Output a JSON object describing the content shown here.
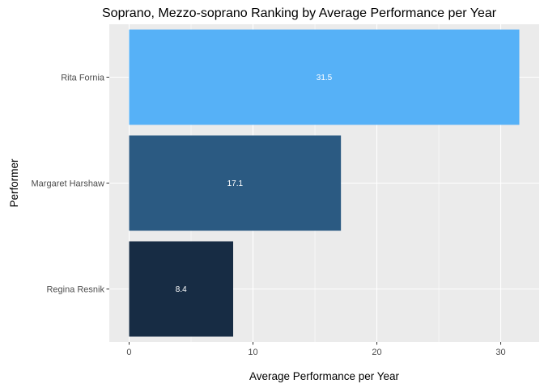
{
  "chart_data": {
    "type": "bar",
    "orientation": "horizontal",
    "title": "Soprano, Mezzo-soprano Ranking by Average Performance per Year",
    "xlabel": "Average Performance per Year",
    "ylabel": "Performer",
    "categories": [
      "Rita Fornia",
      "Margaret Harshaw",
      "Regina Resnik"
    ],
    "values": [
      31.5,
      17.1,
      8.4
    ],
    "data_labels": [
      "31.5",
      "17.1",
      "8.4"
    ],
    "bar_colors": [
      "#56b1f7",
      "#2b5a82",
      "#172c44"
    ],
    "xlim": [
      -1.6,
      33.1
    ],
    "xticks": [
      0,
      10,
      20,
      30
    ],
    "xtick_labels": [
      "0",
      "10",
      "20",
      "30"
    ],
    "grid": true,
    "panel_background": "#ebebeb",
    "grid_color": "#ffffff"
  }
}
